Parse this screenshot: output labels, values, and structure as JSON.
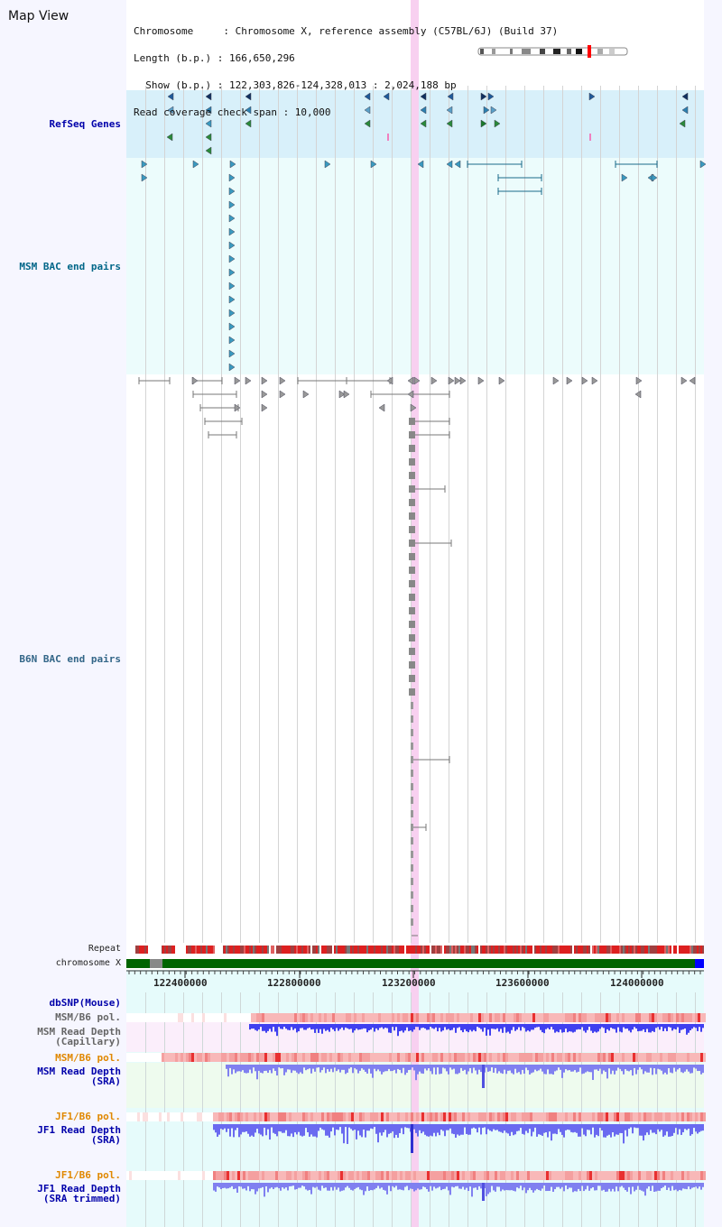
{
  "header": {
    "title": "Map View",
    "info_lines": [
      "Chromosome     : Chromosome X, reference assembly (C57BL/6J) (Build 37)",
      "Length (b.p.) : 166,650,296",
      "  Show (b.p.) : 122,303,826-124,328,013 : 2,024,188 bp",
      "Read coverage check span : 10,000"
    ]
  },
  "tracks": {
    "refseq": "RefSeq Genes",
    "msm_bac": "MSM BAC end pairs",
    "b6n_bac": "B6N BAC end pairs",
    "repeat": "Repeat",
    "chromosome": "chromosome X",
    "dbsnp": "dbSNP(Mouse)",
    "msm_pol_cap": "MSM/B6 pol.",
    "msm_depth_cap": "MSM Read Depth\n(Capillary)",
    "msm_pol_sra": "MSM/B6 pol.",
    "msm_depth_sra": "MSM Read Depth\n(SRA)",
    "jf1_pol": "JF1/B6 pol.",
    "jf1_depth": "JF1 Read Depth\n(SRA)",
    "jf1_pol_trim": "JF1/B6 pol.",
    "jf1_depth_trim": "JF1 Read Depth\n(SRA trimmed)"
  },
  "axis": {
    "ticks": [
      "122400000",
      "122800000",
      "123200000",
      "123600000",
      "124000000"
    ]
  },
  "colors": {
    "refseq_band": "#d8f0fa",
    "bac_band": "#ecfcfc",
    "highlight": "#f8d0f0",
    "chromosome": "#006400",
    "depth": "#6a6af0",
    "pol": "#f0a0a0",
    "label_blue": "#0000aa",
    "label_teal": "#006688",
    "label_orange": "#e08800"
  }
}
